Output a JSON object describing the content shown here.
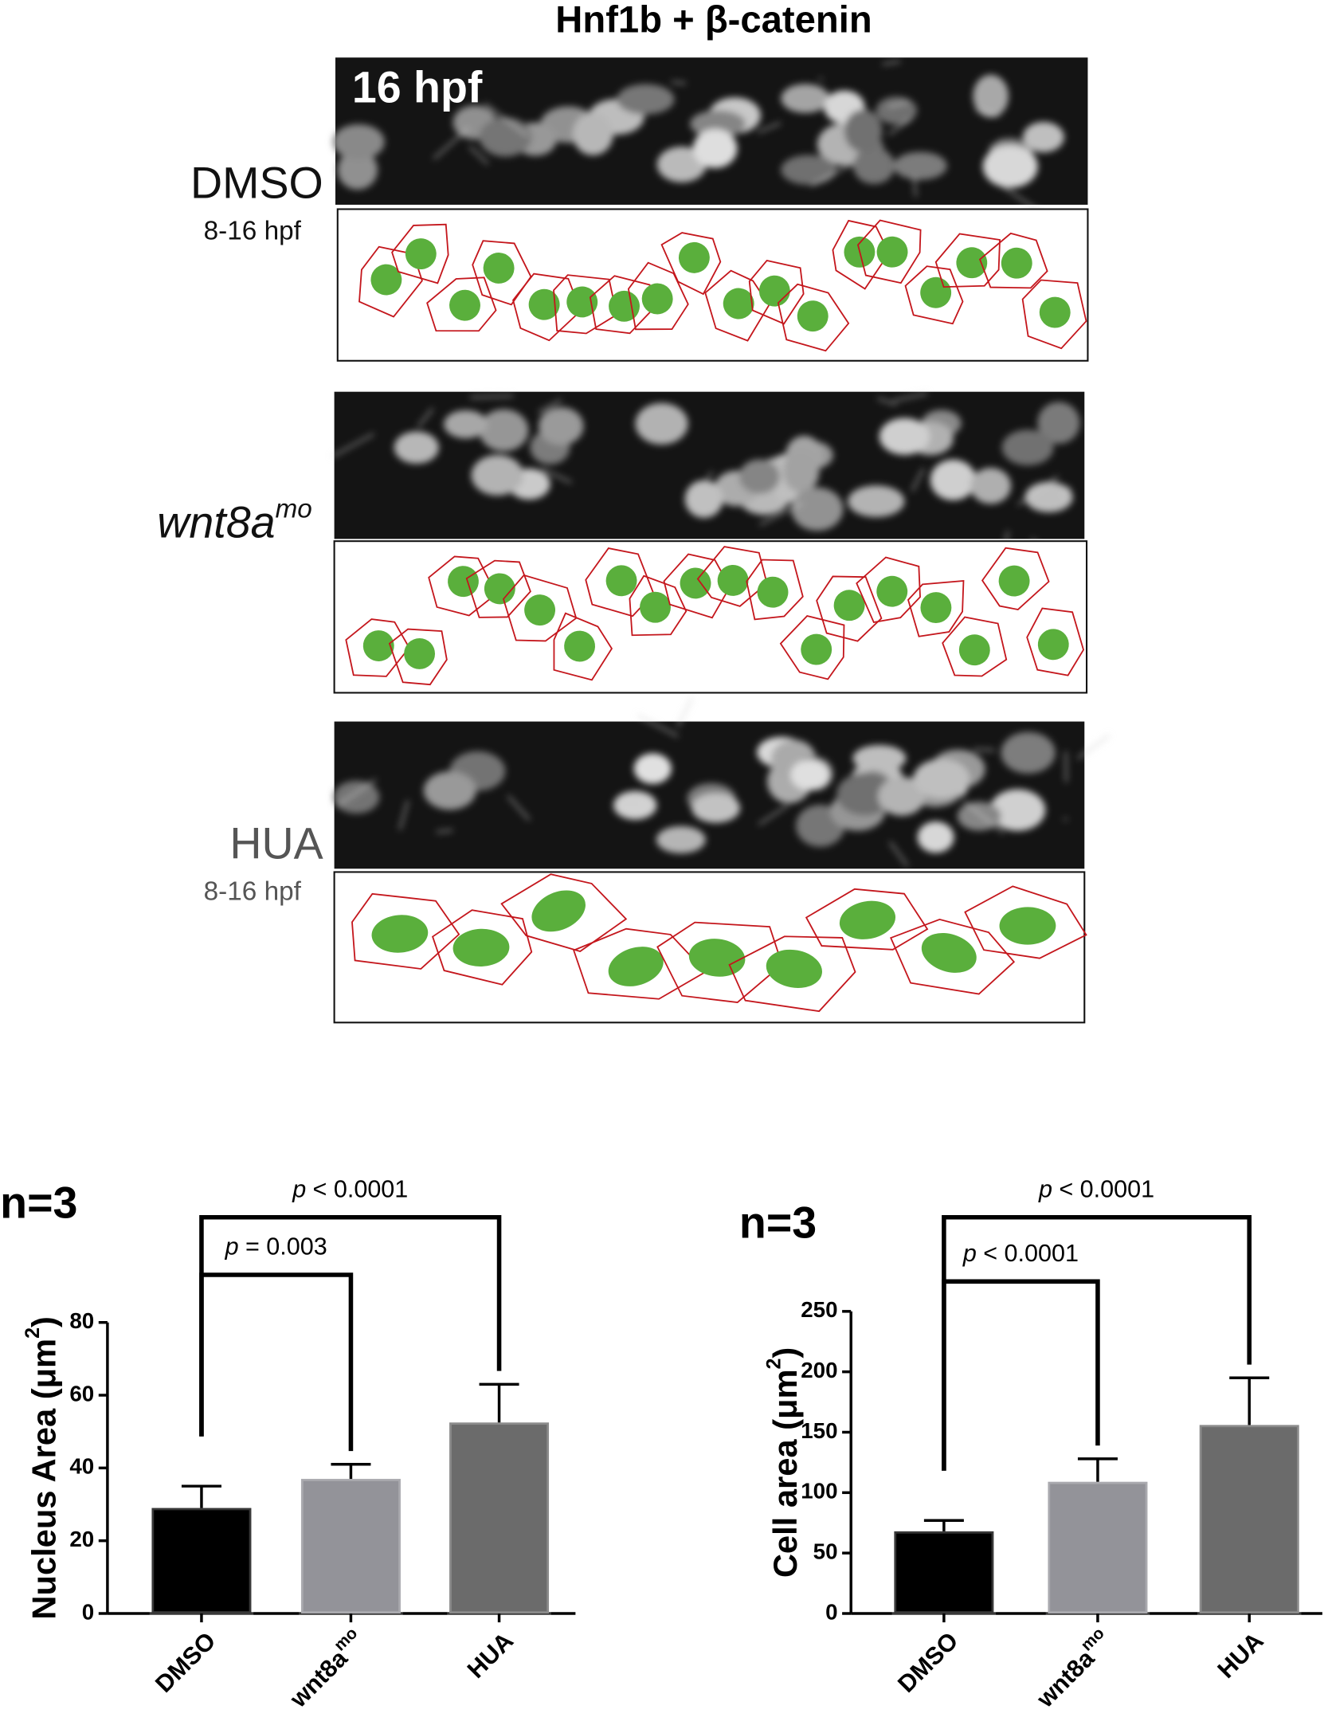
{
  "figure": {
    "title": "Hnf1b + β-catenin",
    "time_label": "16 hpf",
    "panels": [
      {
        "label": "DMSO",
        "sublabel": "8-16 hpf"
      },
      {
        "label": "wnt8a",
        "label_sup": "mo"
      },
      {
        "label": "HUA",
        "sublabel": "8-16 hpf"
      }
    ]
  },
  "chart_data": [
    {
      "type": "bar",
      "n_label": "n=3",
      "y_label": {
        "text": "Nucleus Area (μm",
        "sup": "2",
        "end": ")"
      },
      "categories": [
        {
          "text": "DMSO"
        },
        {
          "text": "wnt8a",
          "sup": "mo"
        },
        {
          "text": "HUA"
        }
      ],
      "values": [
        29,
        37,
        52.5
      ],
      "errors": [
        6,
        4,
        10.5
      ],
      "colors": [
        "#000000",
        "#939399",
        "#6b6b6b"
      ],
      "ylim": [
        0,
        80
      ],
      "yticks": [
        0,
        20,
        40,
        60,
        80
      ],
      "brackets": [
        {
          "var": "p",
          "text": "= 0.003"
        },
        {
          "var": "p",
          "text": "< 0.0001"
        }
      ]
    },
    {
      "type": "bar",
      "n_label": "n=3",
      "y_label": {
        "text": "Cell area (μm",
        "sup": "2",
        "end": ")"
      },
      "categories": [
        {
          "text": "DMSO"
        },
        {
          "text": "wnt8a",
          "sup": "mo"
        },
        {
          "text": "HUA"
        }
      ],
      "values": [
        68,
        109,
        156
      ],
      "errors": [
        9,
        19,
        39
      ],
      "colors": [
        "#000000",
        "#939399",
        "#6b6b6b"
      ],
      "ylim": [
        0,
        250
      ],
      "yticks": [
        0,
        50,
        100,
        150,
        200,
        250
      ],
      "brackets": [
        {
          "var": "p",
          "text": "< 0.0001"
        },
        {
          "var": "p",
          "text": "< 0.0001"
        }
      ]
    }
  ]
}
